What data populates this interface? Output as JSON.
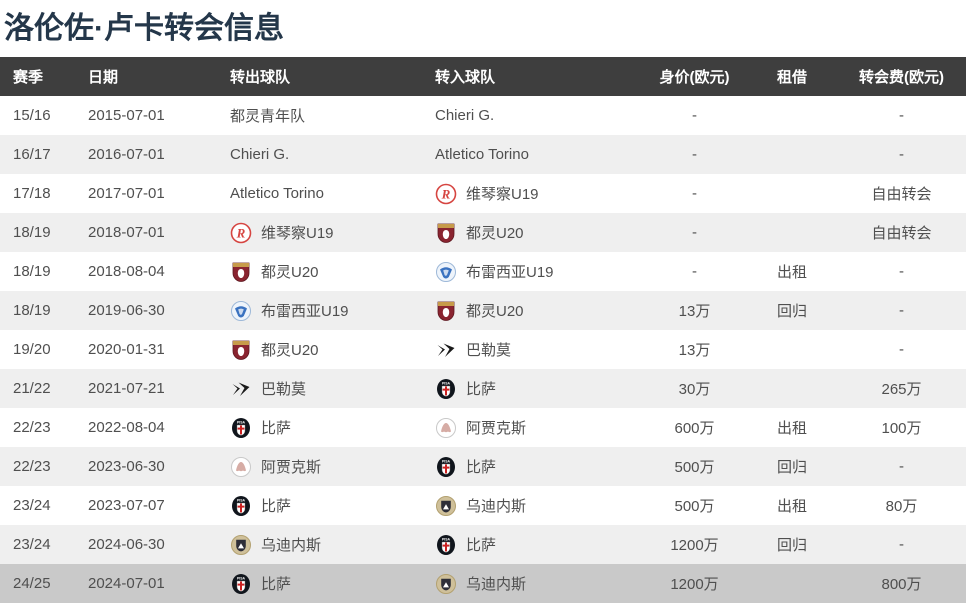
{
  "page": {
    "title": "洛伦佐·卢卡转会信息"
  },
  "colors": {
    "title_text": "#24374a",
    "header_bg": "#3e3e3e",
    "header_text": "#ffffff",
    "row_alt_bg": "#efefef",
    "row_highlight_bg": "#c9c9c9",
    "cell_text": "#4f4f4f",
    "vicenza_red": "#d64541",
    "torino_maroon": "#8a2430",
    "brescia_blue": "#3a72c0",
    "palermo_black": "#1a1a1a",
    "pisa_dark": "#10151c",
    "ajax_tint": "#cf9d95",
    "udinese_gold": "#cfc09a"
  },
  "icons": {
    "vicenza": "vicenza-crest-icon",
    "torino": "torino-crest-icon",
    "brescia": "brescia-crest-icon",
    "palermo": "palermo-crest-icon",
    "pisa": "pisa-crest-icon",
    "ajax": "ajax-crest-icon",
    "udinese": "udinese-crest-icon"
  },
  "table": {
    "headers": [
      "赛季",
      "日期",
      "转出球队",
      "转入球队",
      "身价(欧元)",
      "租借",
      "转会费(欧元)"
    ],
    "rows": [
      {
        "season": "15/16",
        "date": "2015-07-01",
        "from": {
          "name": "都灵青年队",
          "icon": null
        },
        "to": {
          "name": "Chieri G.",
          "icon": null
        },
        "value": "-",
        "loan": "",
        "fee": "-",
        "highlight": false
      },
      {
        "season": "16/17",
        "date": "2016-07-01",
        "from": {
          "name": "Chieri G.",
          "icon": null
        },
        "to": {
          "name": "Atletico Torino",
          "icon": null
        },
        "value": "-",
        "loan": "",
        "fee": "-",
        "highlight": false
      },
      {
        "season": "17/18",
        "date": "2017-07-01",
        "from": {
          "name": "Atletico Torino",
          "icon": null
        },
        "to": {
          "name": "维琴察U19",
          "icon": "vicenza"
        },
        "value": "-",
        "loan": "",
        "fee": "自由转会",
        "highlight": false
      },
      {
        "season": "18/19",
        "date": "2018-07-01",
        "from": {
          "name": "维琴察U19",
          "icon": "vicenza"
        },
        "to": {
          "name": "都灵U20",
          "icon": "torino"
        },
        "value": "-",
        "loan": "",
        "fee": "自由转会",
        "highlight": false
      },
      {
        "season": "18/19",
        "date": "2018-08-04",
        "from": {
          "name": "都灵U20",
          "icon": "torino"
        },
        "to": {
          "name": "布雷西亚U19",
          "icon": "brescia"
        },
        "value": "-",
        "loan": "出租",
        "fee": "-",
        "highlight": false
      },
      {
        "season": "18/19",
        "date": "2019-06-30",
        "from": {
          "name": "布雷西亚U19",
          "icon": "brescia"
        },
        "to": {
          "name": "都灵U20",
          "icon": "torino"
        },
        "value": "13万",
        "loan": "回归",
        "fee": "-",
        "highlight": false
      },
      {
        "season": "19/20",
        "date": "2020-01-31",
        "from": {
          "name": "都灵U20",
          "icon": "torino"
        },
        "to": {
          "name": "巴勒莫",
          "icon": "palermo"
        },
        "value": "13万",
        "loan": "",
        "fee": "-",
        "highlight": false
      },
      {
        "season": "21/22",
        "date": "2021-07-21",
        "from": {
          "name": "巴勒莫",
          "icon": "palermo"
        },
        "to": {
          "name": "比萨",
          "icon": "pisa"
        },
        "value": "30万",
        "loan": "",
        "fee": "265万",
        "highlight": false
      },
      {
        "season": "22/23",
        "date": "2022-08-04",
        "from": {
          "name": "比萨",
          "icon": "pisa"
        },
        "to": {
          "name": "阿贾克斯",
          "icon": "ajax"
        },
        "value": "600万",
        "loan": "出租",
        "fee": "100万",
        "highlight": false
      },
      {
        "season": "22/23",
        "date": "2023-06-30",
        "from": {
          "name": "阿贾克斯",
          "icon": "ajax"
        },
        "to": {
          "name": "比萨",
          "icon": "pisa"
        },
        "value": "500万",
        "loan": "回归",
        "fee": "-",
        "highlight": false
      },
      {
        "season": "23/24",
        "date": "2023-07-07",
        "from": {
          "name": "比萨",
          "icon": "pisa"
        },
        "to": {
          "name": "乌迪内斯",
          "icon": "udinese"
        },
        "value": "500万",
        "loan": "出租",
        "fee": "80万",
        "highlight": false
      },
      {
        "season": "23/24",
        "date": "2024-06-30",
        "from": {
          "name": "乌迪内斯",
          "icon": "udinese"
        },
        "to": {
          "name": "比萨",
          "icon": "pisa"
        },
        "value": "1200万",
        "loan": "回归",
        "fee": "-",
        "highlight": false
      },
      {
        "season": "24/25",
        "date": "2024-07-01",
        "from": {
          "name": "比萨",
          "icon": "pisa"
        },
        "to": {
          "name": "乌迪内斯",
          "icon": "udinese"
        },
        "value": "1200万",
        "loan": "",
        "fee": "800万",
        "highlight": true
      }
    ]
  }
}
